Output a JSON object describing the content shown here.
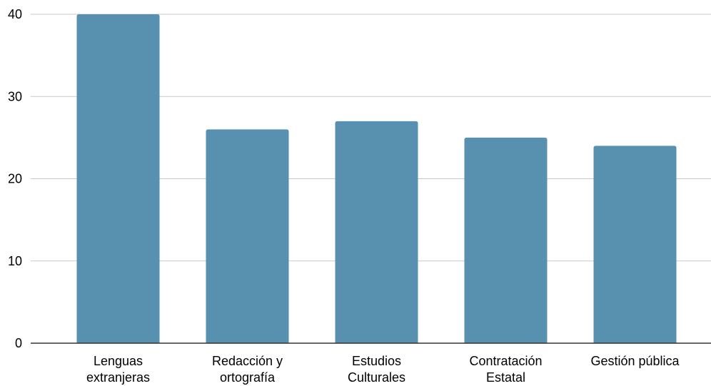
{
  "chart_data": {
    "type": "bar",
    "title": "",
    "xlabel": "",
    "ylabel": "",
    "categories": [
      [
        "Lenguas",
        "extranjeras"
      ],
      [
        "Redacción y",
        "ortografía"
      ],
      [
        "Estudios",
        "Culturales"
      ],
      [
        "Contratación",
        "Estatal"
      ],
      [
        "Gestión pública"
      ]
    ],
    "values": [
      40,
      26,
      27,
      25,
      24
    ],
    "ylim": [
      0,
      40
    ],
    "yticks": [
      0,
      10,
      20,
      30,
      40
    ],
    "grid": true,
    "legend": "none",
    "bar_color": "#5890b0"
  }
}
